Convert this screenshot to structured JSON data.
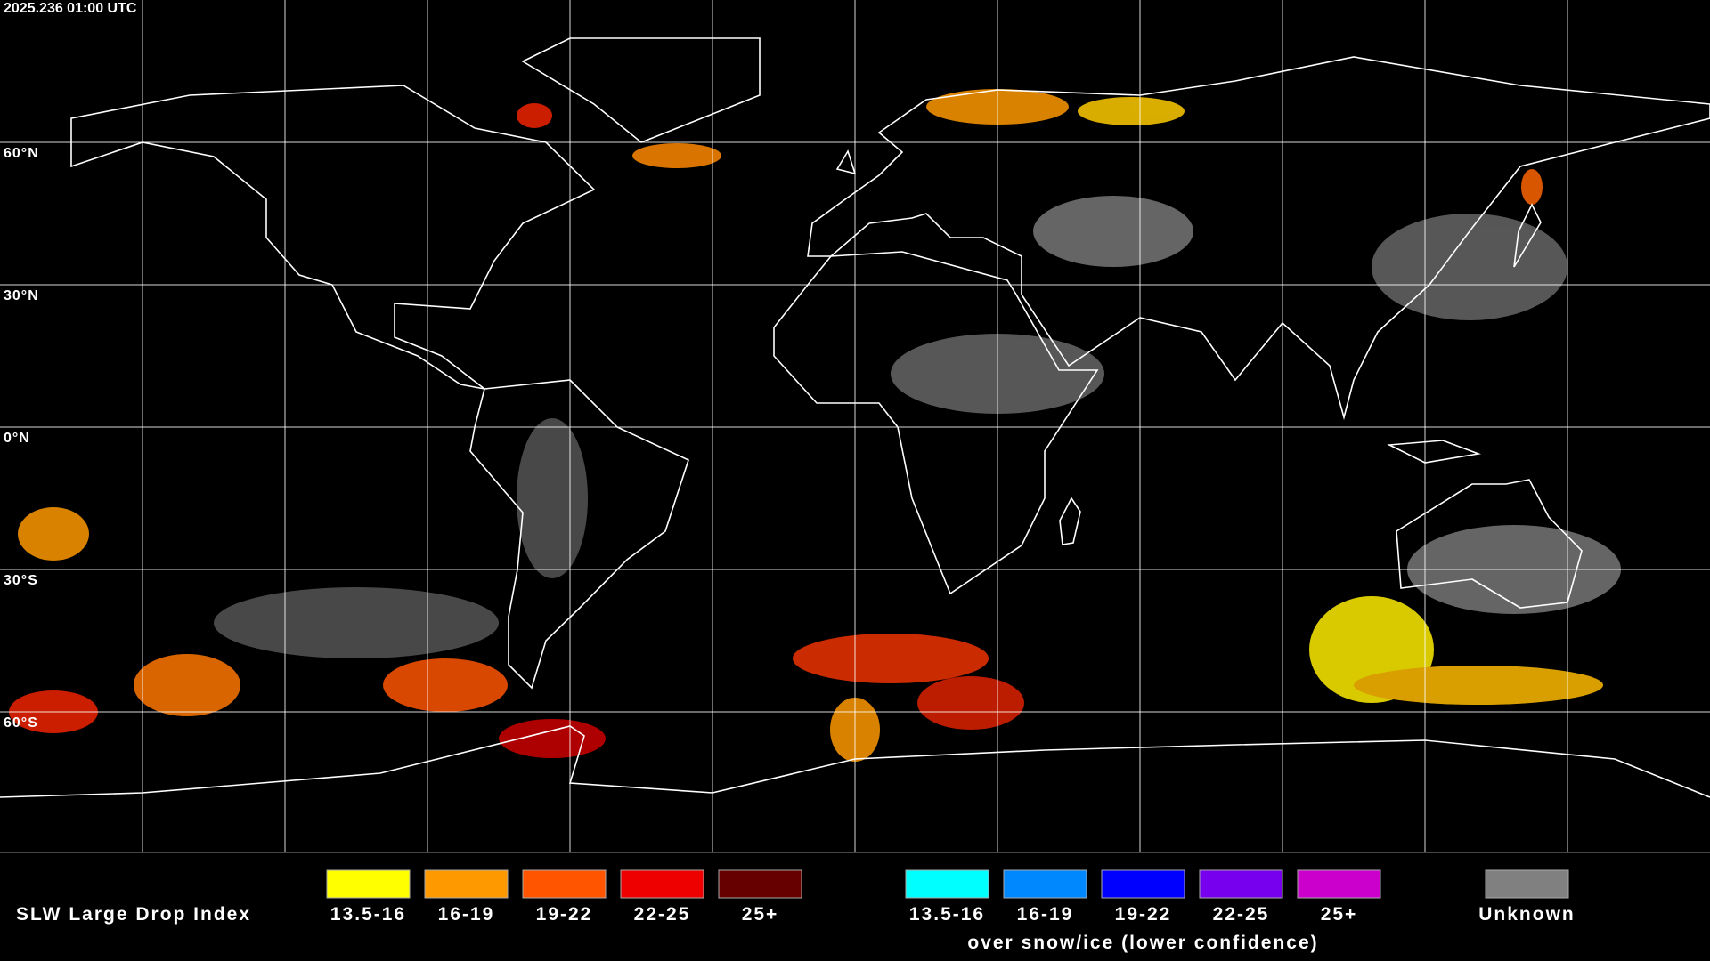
{
  "header": {
    "timestamp": "2025.236 01:00 UTC"
  },
  "lat_labels": [
    "60°N",
    "30°N",
    "0°N",
    "30°S",
    "60°S"
  ],
  "legend": {
    "title": "SLW Large Drop Index",
    "groups": [
      {
        "items": [
          {
            "label": "13.5-16",
            "color": "#ffff00"
          },
          {
            "label": "16-19",
            "color": "#ff9900"
          },
          {
            "label": "19-22",
            "color": "#ff5500"
          },
          {
            "label": "22-25",
            "color": "#ee0000"
          },
          {
            "label": "25+",
            "color": "#660000"
          }
        ]
      },
      {
        "items": [
          {
            "label": "13.5-16",
            "color": "#00ffff"
          },
          {
            "label": "16-19",
            "color": "#0088ff"
          },
          {
            "label": "19-22",
            "color": "#0000ff"
          },
          {
            "label": "22-25",
            "color": "#7700ee"
          },
          {
            "label": "25+",
            "color": "#cc00cc"
          }
        ],
        "caption": "over snow/ice (lower confidence)"
      }
    ],
    "unknown": {
      "label": "Unknown",
      "color": "#808080"
    }
  }
}
